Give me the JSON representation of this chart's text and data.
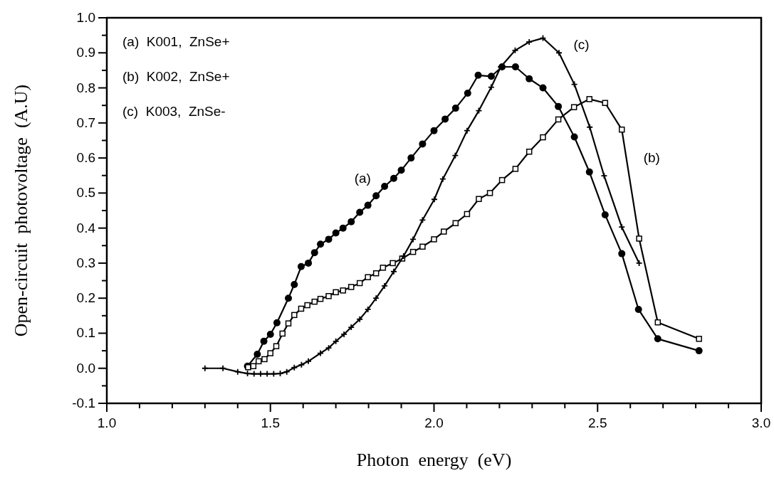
{
  "chart_data": {
    "type": "line",
    "xlabel": "Photon  energy  (eV)",
    "ylabel": "Open-circuit  photovoltage  (A.U)",
    "xlim": [
      1.0,
      3.0
    ],
    "xticks": [
      {
        "value": 1.0,
        "label": "1.0"
      },
      {
        "value": 1.1,
        "label": null
      },
      {
        "value": 1.2,
        "label": null
      },
      {
        "value": 1.3,
        "label": null
      },
      {
        "value": 1.4,
        "label": null
      },
      {
        "value": 1.5,
        "label": "1.5"
      },
      {
        "value": 1.6,
        "label": null
      },
      {
        "value": 1.7,
        "label": null
      },
      {
        "value": 1.8,
        "label": null
      },
      {
        "value": 1.9,
        "label": null
      },
      {
        "value": 2.0,
        "label": "2.0"
      },
      {
        "value": 2.1,
        "label": null
      },
      {
        "value": 2.2,
        "label": null
      },
      {
        "value": 2.3,
        "label": null
      },
      {
        "value": 2.4,
        "label": null
      },
      {
        "value": 2.5,
        "label": "2.5"
      },
      {
        "value": 2.6,
        "label": null
      },
      {
        "value": 2.7,
        "label": null
      },
      {
        "value": 2.8,
        "label": null
      },
      {
        "value": 2.9,
        "label": null
      },
      {
        "value": 3.0,
        "label": "3.0"
      }
    ],
    "ylim": [
      -0.1,
      1.0
    ],
    "yticks": [
      {
        "value": -0.1,
        "label": "-0.1"
      },
      {
        "value": -0.05,
        "label": null
      },
      {
        "value": 0,
        "label": "0.0"
      },
      {
        "value": 0.05,
        "label": null
      },
      {
        "value": 0.1,
        "label": "0.1"
      },
      {
        "value": 0.15,
        "label": null
      },
      {
        "value": 0.2,
        "label": "0.2"
      },
      {
        "value": 0.25,
        "label": null
      },
      {
        "value": 0.3,
        "label": "0.3"
      },
      {
        "value": 0.35,
        "label": null
      },
      {
        "value": 0.4,
        "label": "0.4"
      },
      {
        "value": 0.45,
        "label": null
      },
      {
        "value": 0.5,
        "label": "0.5"
      },
      {
        "value": 0.55,
        "label": null
      },
      {
        "value": 0.6,
        "label": "0.6"
      },
      {
        "value": 0.65,
        "label": null
      },
      {
        "value": 0.7,
        "label": "0.7"
      },
      {
        "value": 0.75,
        "label": null
      },
      {
        "value": 0.8,
        "label": "0.8"
      },
      {
        "value": 0.85,
        "label": null
      },
      {
        "value": 0.9,
        "label": "0.9"
      },
      {
        "value": 0.95,
        "label": null
      },
      {
        "value": 1.0,
        "label": "1.0"
      }
    ],
    "grid": false,
    "line_style": "solid",
    "series": [
      {
        "name": "(a)",
        "color": "#000000",
        "marker": "circle",
        "x": [
          1.43,
          1.46,
          1.48,
          1.5,
          1.52,
          1.555,
          1.573,
          1.594,
          1.616,
          1.635,
          1.653,
          1.678,
          1.7,
          1.722,
          1.747,
          1.773,
          1.798,
          1.823,
          1.849,
          1.877,
          1.9,
          1.93,
          1.965,
          2.0,
          2.034,
          2.066,
          2.103,
          2.135,
          2.175,
          2.208,
          2.249,
          2.291,
          2.333,
          2.38,
          2.429,
          2.475,
          2.523,
          2.574,
          2.625,
          2.684,
          2.81
        ],
        "values": [
          0.006,
          0.04,
          0.077,
          0.097,
          0.13,
          0.2,
          0.239,
          0.29,
          0.3,
          0.33,
          0.354,
          0.368,
          0.386,
          0.4,
          0.418,
          0.445,
          0.465,
          0.492,
          0.519,
          0.542,
          0.565,
          0.6,
          0.64,
          0.678,
          0.711,
          0.742,
          0.785,
          0.836,
          0.833,
          0.86,
          0.86,
          0.826,
          0.8,
          0.747,
          0.66,
          0.56,
          0.438,
          0.327,
          0.168,
          0.084,
          0.05
        ]
      },
      {
        "name": "(b)",
        "color": "#000000",
        "marker": "square",
        "x": [
          1.432,
          1.448,
          1.464,
          1.482,
          1.5,
          1.518,
          1.537,
          1.555,
          1.573,
          1.594,
          1.613,
          1.635,
          1.653,
          1.678,
          1.7,
          1.722,
          1.747,
          1.773,
          1.798,
          1.823,
          1.844,
          1.874,
          1.903,
          1.936,
          1.965,
          2.0,
          2.03,
          2.066,
          2.101,
          2.137,
          2.171,
          2.208,
          2.249,
          2.291,
          2.333,
          2.38,
          2.428,
          2.475,
          2.523,
          2.574,
          2.627,
          2.684,
          2.81
        ],
        "values": [
          0.003,
          0.006,
          0.02,
          0.026,
          0.043,
          0.063,
          0.099,
          0.128,
          0.152,
          0.17,
          0.18,
          0.19,
          0.198,
          0.206,
          0.217,
          0.222,
          0.232,
          0.243,
          0.26,
          0.271,
          0.287,
          0.3,
          0.313,
          0.332,
          0.347,
          0.368,
          0.39,
          0.414,
          0.44,
          0.483,
          0.5,
          0.537,
          0.569,
          0.618,
          0.659,
          0.71,
          0.745,
          0.768,
          0.757,
          0.681,
          0.37,
          0.131,
          0.084
        ]
      },
      {
        "name": "(c)",
        "color": "#000000",
        "marker": "cross",
        "x": [
          1.3,
          1.355,
          1.4,
          1.43,
          1.45,
          1.47,
          1.49,
          1.51,
          1.53,
          1.55,
          1.573,
          1.595,
          1.616,
          1.653,
          1.678,
          1.7,
          1.725,
          1.747,
          1.773,
          1.798,
          1.823,
          1.849,
          1.877,
          1.907,
          1.936,
          1.965,
          2.001,
          2.027,
          2.065,
          2.101,
          2.137,
          2.175,
          2.204,
          2.248,
          2.291,
          2.333,
          2.382,
          2.429,
          2.476,
          2.52,
          2.574,
          2.627
        ],
        "values": [
          0.0,
          0.0,
          -0.01,
          -0.015,
          -0.016,
          -0.016,
          -0.016,
          -0.016,
          -0.015,
          -0.01,
          0.002,
          0.01,
          0.02,
          0.043,
          0.058,
          0.077,
          0.097,
          0.117,
          0.14,
          0.168,
          0.2,
          0.235,
          0.276,
          0.32,
          0.368,
          0.423,
          0.482,
          0.54,
          0.607,
          0.678,
          0.735,
          0.802,
          0.86,
          0.907,
          0.931,
          0.942,
          0.9,
          0.81,
          0.688,
          0.549,
          0.403,
          0.3
        ]
      }
    ],
    "annotations": [
      "(a)  K001,  ZnSe+",
      "(b)  K002,  ZnSe+",
      "(c)  K003,  ZnSe-"
    ]
  }
}
